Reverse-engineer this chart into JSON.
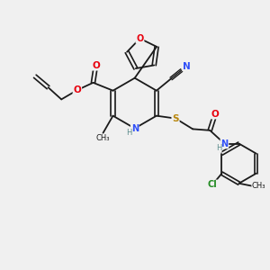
{
  "background_color": "#f0f0f0",
  "bond_color": "#1a1a1a",
  "atom_colors": {
    "O": "#e8000d",
    "N": "#3050f8",
    "S": "#b8860b",
    "Cl": "#228b22",
    "C": "#1a1a1a",
    "H": "#5a8a8a"
  },
  "figsize": [
    3.0,
    3.0
  ],
  "dpi": 100
}
